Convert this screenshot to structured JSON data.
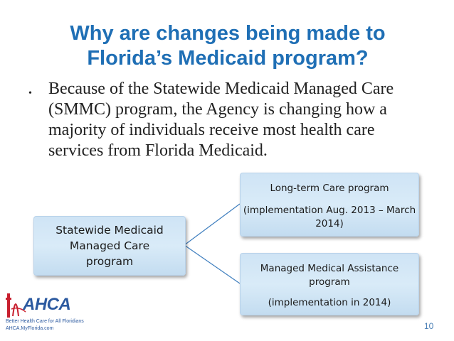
{
  "slide": {
    "title": "Why are changes being made to Florida’s Medicaid program?",
    "bullet": "Because of the Statewide Medicaid Managed Care (SMMC) program, the Agency is changing how a majority of individuals receive most health care services from Florida Medicaid.",
    "page_number": "10"
  },
  "diagram": {
    "root": {
      "label": "Statewide Medicaid Managed Care program"
    },
    "children": [
      {
        "label": "Long-term Care program",
        "detail": "(implementation Aug. 2013 – March 2014)"
      },
      {
        "label": "Managed Medical Assistance program",
        "detail": "(implementation in 2014)"
      }
    ],
    "box_color": "#d4e6f6",
    "line_color": "#3f7fbf"
  },
  "logo": {
    "wordmark": "AHCA",
    "tagline": "Better Health Care for All Floridians",
    "website": "AHCA.MyFlorida.com",
    "colors": {
      "primary": "#2c5aa0",
      "accent": "#c8202f"
    }
  },
  "colors": {
    "title": "#1f6fb5",
    "body_text": "#222222"
  }
}
